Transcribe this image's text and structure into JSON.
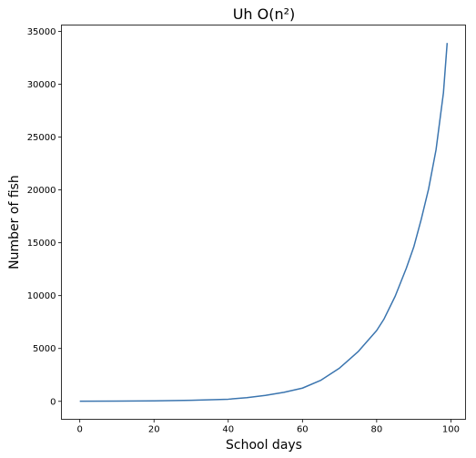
{
  "chart_data": {
    "type": "line",
    "title": "Uh O(n²)",
    "xlabel": "School days",
    "ylabel": "Number of fish",
    "xlim": [
      -4.95,
      103.95
    ],
    "ylim": [
      -1700,
      35600
    ],
    "xticks": [
      0,
      20,
      40,
      60,
      80,
      100
    ],
    "yticks": [
      0,
      5000,
      10000,
      15000,
      20000,
      25000,
      30000,
      35000
    ],
    "grid": false,
    "series_color": "#3b75af",
    "series": [
      {
        "x": [
          0,
          10,
          20,
          30,
          40,
          45,
          50,
          55,
          60,
          65,
          70,
          75,
          80,
          82,
          85,
          88,
          90,
          92,
          94,
          96,
          98,
          99
        ],
        "y": [
          10,
          20,
          40,
          100,
          200,
          350,
          560,
          850,
          1250,
          2000,
          3150,
          4700,
          6700,
          7800,
          9950,
          12600,
          14600,
          17200,
          20100,
          23800,
          29200,
          33900
        ]
      }
    ]
  }
}
